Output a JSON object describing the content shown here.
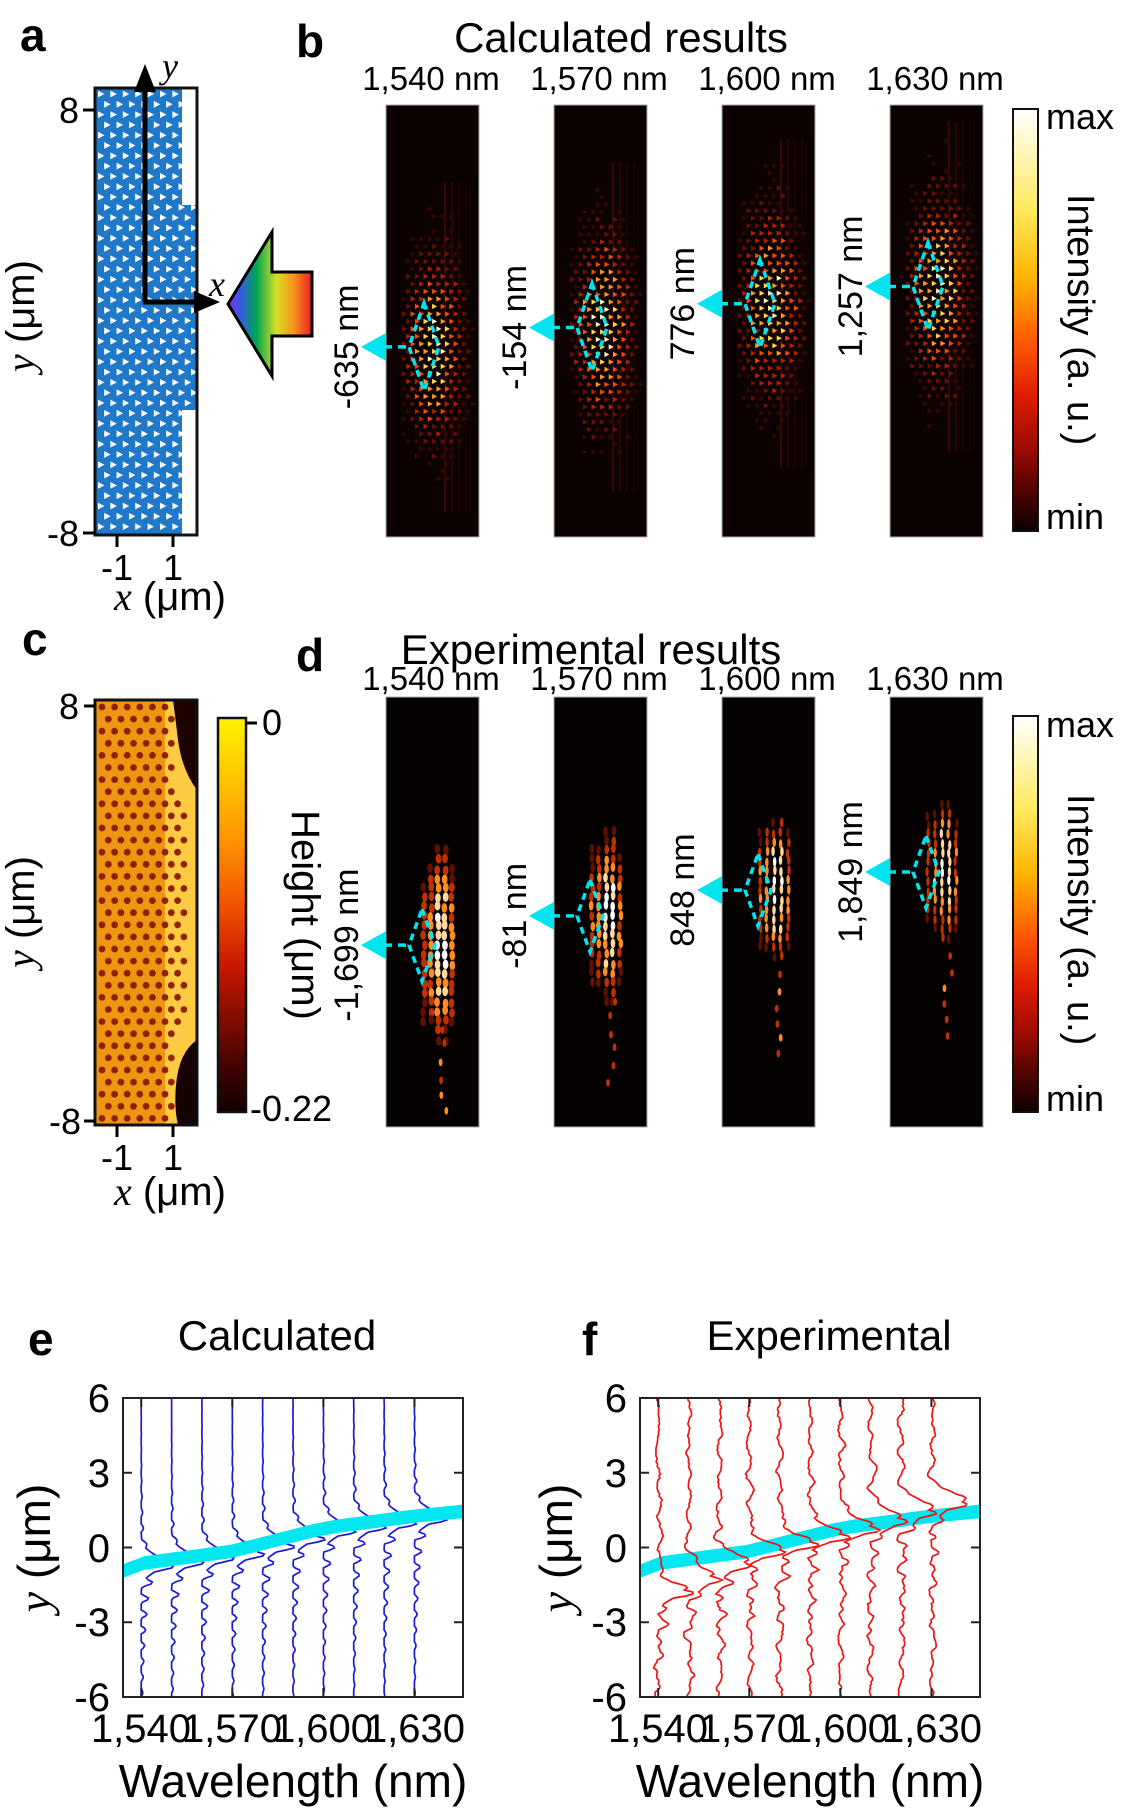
{
  "figure": {
    "panel_a": {
      "label": "a",
      "ytick_top": "8",
      "ytick_bottom": "-8",
      "xtick_left": "-1",
      "xtick_right": "1",
      "axis_y_letter": "y",
      "axis_x_letter": "x",
      "ylabel_var": "y",
      "ylabel_unit": " (μm)",
      "xlabel_var": "x",
      "xlabel_unit": " (μm)",
      "structure_color": "#1f78c8"
    },
    "panel_b": {
      "label": "b",
      "title": "Calculated results",
      "wavelengths": [
        "1,540 nm",
        "1,570 nm",
        "1,600 nm",
        "1,630 nm"
      ],
      "annotations": [
        "-635 nm",
        "-154 nm",
        "776 nm",
        "1,257 nm"
      ],
      "colorbar_max": "max",
      "colorbar_min": "min",
      "colorbar_label": "Intensity (a. u.)"
    },
    "panel_c": {
      "label": "c",
      "ytick_top": "8",
      "ytick_bottom": "-8",
      "xtick_left": "-1",
      "xtick_right": "1",
      "ylabel_var": "y",
      "ylabel_unit": " (μm)",
      "xlabel_var": "x",
      "xlabel_unit": " (μm)",
      "cb_top": "0",
      "cb_bottom": "-0.22",
      "cb_label": "Height (μm)"
    },
    "panel_d": {
      "label": "d",
      "title": "Experimental results",
      "wavelengths": [
        "1,540 nm",
        "1,570 nm",
        "1,600 nm",
        "1,630 nm"
      ],
      "annotations": [
        "-1,699 nm",
        "-81 nm",
        "848 nm",
        "1,849 nm"
      ],
      "colorbar_max": "max",
      "colorbar_min": "min",
      "colorbar_label": "Intensity (a. u.)"
    },
    "panel_e": {
      "label": "e",
      "title": "Calculated",
      "yticks": [
        "6",
        "3",
        "0",
        "-3",
        "-6"
      ],
      "xticks": [
        "1,540",
        "1,570",
        "1,600",
        "1,630"
      ],
      "xlabel": "Wavelength (nm)",
      "ylabel_var": "y",
      "ylabel_unit": " (μm)"
    },
    "panel_f": {
      "label": "f",
      "title": "Experimental",
      "yticks": [
        "6",
        "3",
        "0",
        "-3",
        "-6"
      ],
      "xticks": [
        "1,540",
        "1,570",
        "1,600",
        "1,630"
      ],
      "xlabel": "Wavelength (nm)",
      "ylabel_var": "y",
      "ylabel_unit": " (μm)"
    }
  },
  "chart_data": [
    {
      "panel": "b",
      "type": "heatmap",
      "title": "Calculated results",
      "wavelengths_nm": [
        1540,
        1570,
        1600,
        1630
      ],
      "focal_shift_nm": [
        -635,
        -154,
        776,
        1257
      ],
      "spot_center_frac": [
        0.56,
        0.515,
        0.46,
        0.42
      ],
      "spot_size": [
        1.0,
        1.0,
        1.0,
        1.0
      ],
      "colorbar": {
        "max_label": "max",
        "min_label": "min",
        "label": "Intensity (a. u.)"
      }
    },
    {
      "panel": "c",
      "type": "heatmap",
      "xlabel": "x (μm)",
      "ylabel": "y (μm)",
      "x_ticks": [
        -1,
        1
      ],
      "y_ticks": [
        8,
        -8
      ],
      "colorbar": {
        "label": "Height (μm)",
        "ticks": [
          0,
          -0.22
        ]
      }
    },
    {
      "panel": "d",
      "type": "heatmap",
      "title": "Experimental results",
      "wavelengths_nm": [
        1540,
        1570,
        1600,
        1630
      ],
      "focal_shift_nm": [
        -1699,
        -81,
        848,
        1849
      ],
      "spot_center_frac": [
        0.577,
        0.509,
        0.449,
        0.407
      ],
      "spot_size": [
        1.35,
        1.05,
        0.8,
        0.75
      ],
      "colorbar": {
        "max_label": "max",
        "min_label": "min",
        "label": "Intensity (a. u.)"
      }
    },
    {
      "panel": "e",
      "type": "line",
      "title": "Calculated",
      "xlabel": "Wavelength (nm)",
      "ylabel": "y (μm)",
      "xlim": [
        1534,
        1646
      ],
      "ylim": [
        -6,
        6
      ],
      "x_ticks": [
        1540,
        1570,
        1600,
        1630
      ],
      "y_ticks": [
        6,
        3,
        0,
        -3,
        -6
      ],
      "trace_wavelengths_nm": [
        1540,
        1550,
        1560,
        1570,
        1580,
        1590,
        1600,
        1610,
        1620,
        1630
      ],
      "line_color": "#1a1ad4",
      "focal_points": {
        "wavelengths_nm": [
          1540,
          1570,
          1600,
          1630
        ],
        "y_um": [
          -0.635,
          -0.154,
          0.776,
          1.257
        ]
      },
      "band": {
        "color": "#00e7f0",
        "x_nm": [
          1534,
          1540,
          1570,
          1600,
          1630,
          1646
        ],
        "y_um": [
          -0.95,
          -0.635,
          -0.154,
          0.776,
          1.257,
          1.45
        ],
        "half_width_um": 0.27
      }
    },
    {
      "panel": "f",
      "type": "line",
      "title": "Experimental",
      "xlabel": "Wavelength (nm)",
      "ylabel": "y (μm)",
      "xlim": [
        1534,
        1646
      ],
      "ylim": [
        -6,
        6
      ],
      "x_ticks": [
        1540,
        1570,
        1600,
        1630
      ],
      "y_ticks": [
        6,
        3,
        0,
        -3,
        -6
      ],
      "trace_wavelengths_nm": [
        1540,
        1550,
        1560,
        1570,
        1580,
        1590,
        1600,
        1610,
        1620,
        1630
      ],
      "line_color": "#ee1414",
      "focal_points": {
        "wavelengths_nm": [
          1540,
          1570,
          1600,
          1630
        ],
        "y_um": [
          -1.699,
          -0.081,
          0.848,
          1.849
        ]
      },
      "band": {
        "color": "#00e7f0",
        "x_nm": [
          1534,
          1540,
          1570,
          1600,
          1630,
          1646
        ],
        "y_um": [
          -0.95,
          -0.635,
          -0.154,
          0.776,
          1.257,
          1.45
        ],
        "half_width_um": 0.27
      }
    }
  ]
}
